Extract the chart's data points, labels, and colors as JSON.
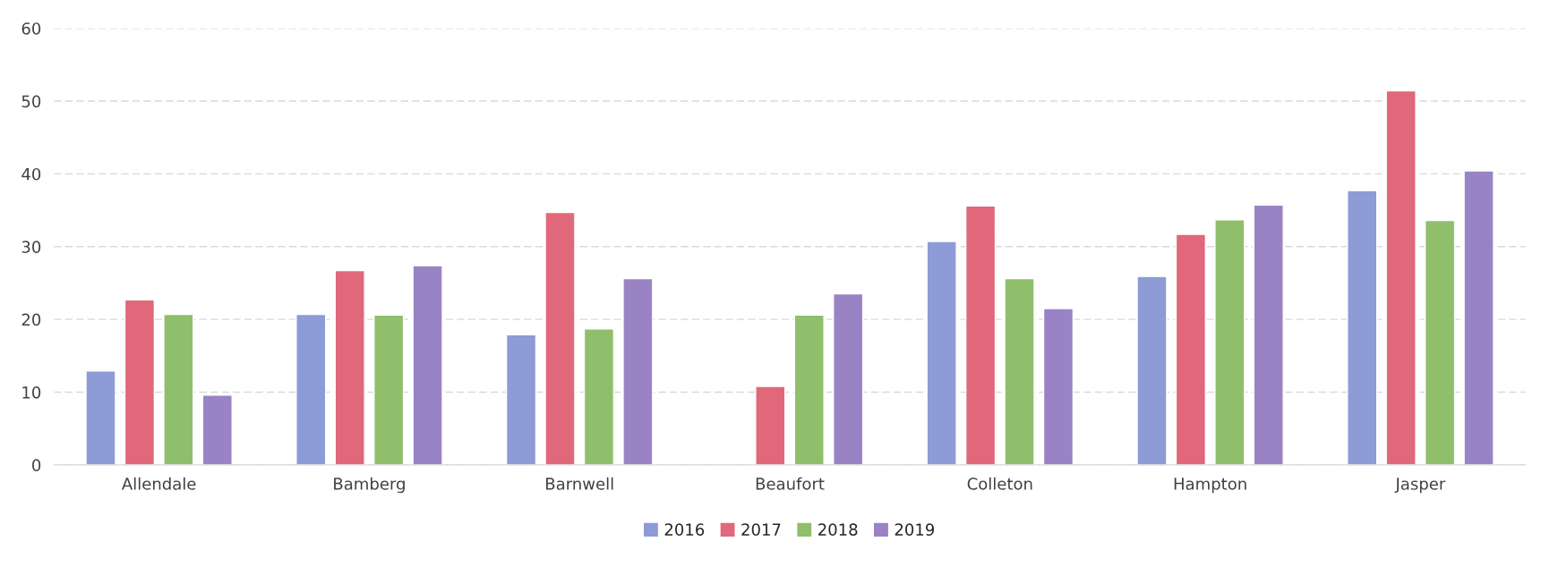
{
  "chart_data": {
    "type": "bar",
    "categories": [
      "Allendale",
      "Bamberg",
      "Barnwell",
      "Beaufort",
      "Colleton",
      "Hampton",
      "Jasper"
    ],
    "series": [
      {
        "name": "2016",
        "color": "#8d9bd6",
        "values": [
          12.9,
          20.7,
          17.9,
          null,
          30.7,
          25.9,
          37.7
        ]
      },
      {
        "name": "2017",
        "color": "#e0687a",
        "values": [
          22.7,
          26.7,
          34.7,
          10.8,
          35.6,
          31.7,
          51.4
        ]
      },
      {
        "name": "2018",
        "color": "#8fbf6a",
        "values": [
          20.7,
          20.6,
          18.7,
          20.6,
          25.6,
          33.7,
          33.6
        ]
      },
      {
        "name": "2019",
        "color": "#9a83c4",
        "values": [
          9.6,
          27.4,
          25.6,
          23.5,
          21.5,
          35.7,
          40.4
        ]
      }
    ],
    "ylim": [
      0,
      60
    ],
    "yticks": [
      0,
      10,
      20,
      30,
      40,
      50,
      60
    ],
    "grid": "y",
    "legend": "bottom"
  }
}
